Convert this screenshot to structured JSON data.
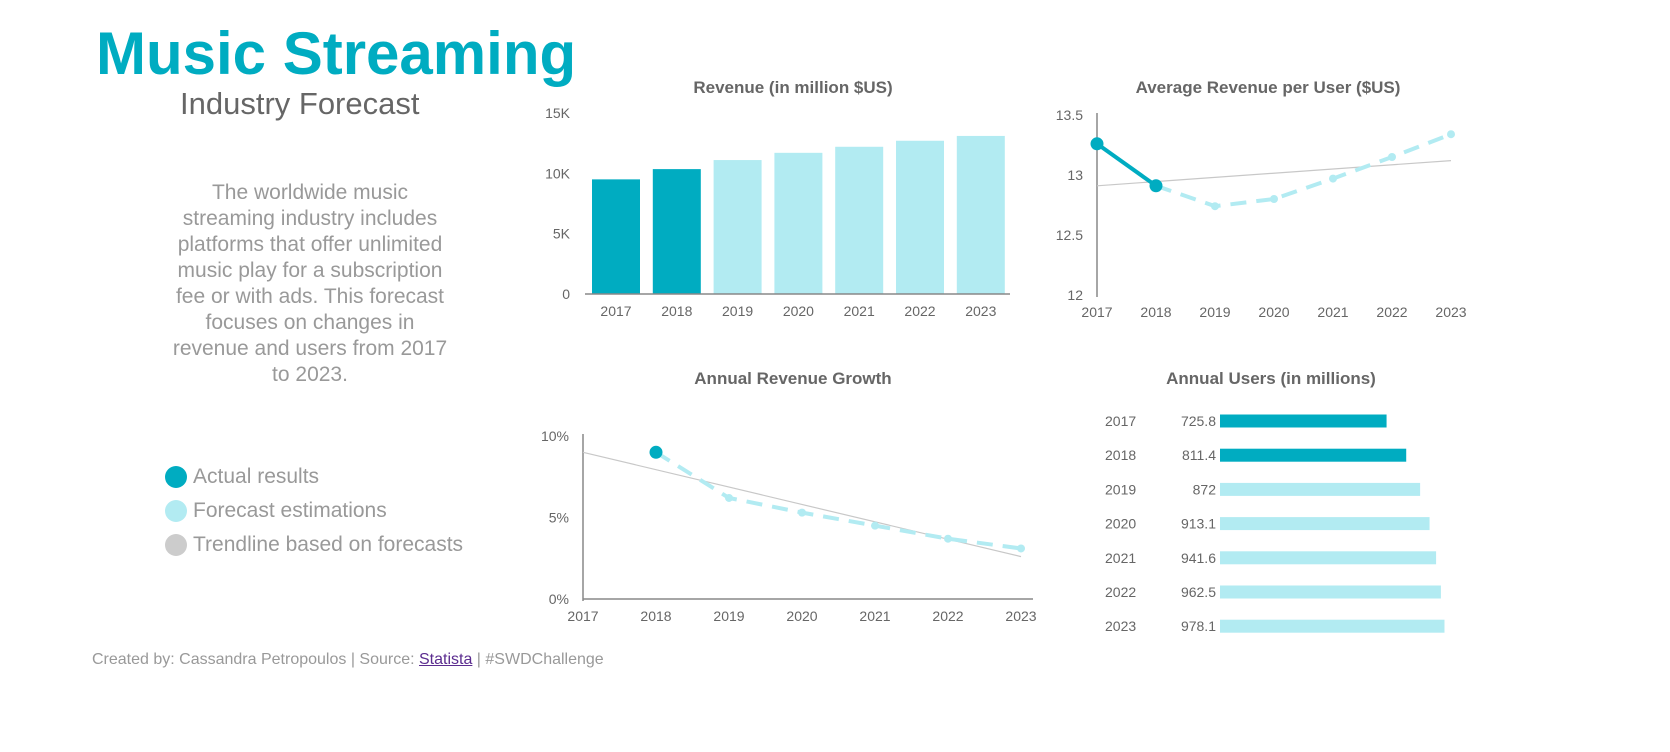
{
  "header": {
    "title": "Music Streaming",
    "subtitle": "Industry Forecast"
  },
  "description": "The worldwide music streaming industry includes platforms that offer unlimited music play for a subscription fee or with ads.  This forecast focuses on changes in revenue and users from 2017 to 2023.",
  "legend": [
    {
      "label": "Actual results",
      "color": "#00acc1"
    },
    {
      "label": "Forecast estimations",
      "color": "#b2ebf2"
    },
    {
      "label": "Trendline based on forecasts",
      "color": "#cccccc"
    }
  ],
  "footer": {
    "prefix": "Created by: Cassandra Petropoulos | Source: ",
    "link": "Statista",
    "suffix": " | #SWDChallenge"
  },
  "colors": {
    "actual": "#00acc1",
    "forecast": "#b2ebf2",
    "trend": "#c8c8c8",
    "axis": "#888888"
  },
  "chart_data": [
    {
      "type": "bar",
      "title": "Revenue (in million $US)",
      "categories": [
        "2017",
        "2018",
        "2019",
        "2020",
        "2021",
        "2022",
        "2023"
      ],
      "values": [
        9500,
        10350,
        11100,
        11700,
        12200,
        12700,
        13100
      ],
      "actual_through": "2018",
      "ylim": [
        0,
        15000
      ],
      "yticks": [
        "0",
        "5K",
        "10K",
        "15K"
      ],
      "grid": false
    },
    {
      "type": "line",
      "title": "Average Revenue per User ($US)",
      "categories": [
        "2017",
        "2018",
        "2019",
        "2020",
        "2021",
        "2022",
        "2023"
      ],
      "values": [
        13.26,
        12.91,
        12.74,
        12.8,
        12.97,
        13.15,
        13.34
      ],
      "actual_through": "2018",
      "trendline": [
        12.91,
        13.12
      ],
      "ylim": [
        12,
        13.5
      ],
      "yticks": [
        "12",
        "12.5",
        "13",
        "13.5"
      ],
      "grid": false
    },
    {
      "type": "line",
      "title": "Annual Revenue Growth",
      "categories": [
        "2017",
        "2018",
        "2019",
        "2020",
        "2021",
        "2022",
        "2023"
      ],
      "values": [
        null,
        9.0,
        6.2,
        5.3,
        4.5,
        3.7,
        3.1
      ],
      "actual_through": "2018",
      "trendline": [
        9.0,
        2.6
      ],
      "ylim": [
        0,
        10
      ],
      "yticks": [
        "0%",
        "5%",
        "10%"
      ],
      "grid": false
    },
    {
      "type": "bar",
      "orientation": "horizontal",
      "title": "Annual Users (in millions)",
      "categories": [
        "2017",
        "2018",
        "2019",
        "2020",
        "2021",
        "2022",
        "2023"
      ],
      "values": [
        725.8,
        811.4,
        872,
        913.1,
        941.6,
        962.5,
        978.1
      ],
      "labels": [
        "725.8",
        "811.4",
        "872",
        "913.1",
        "941.6",
        "962.5",
        "978.1"
      ],
      "actual_through": "2018"
    }
  ]
}
